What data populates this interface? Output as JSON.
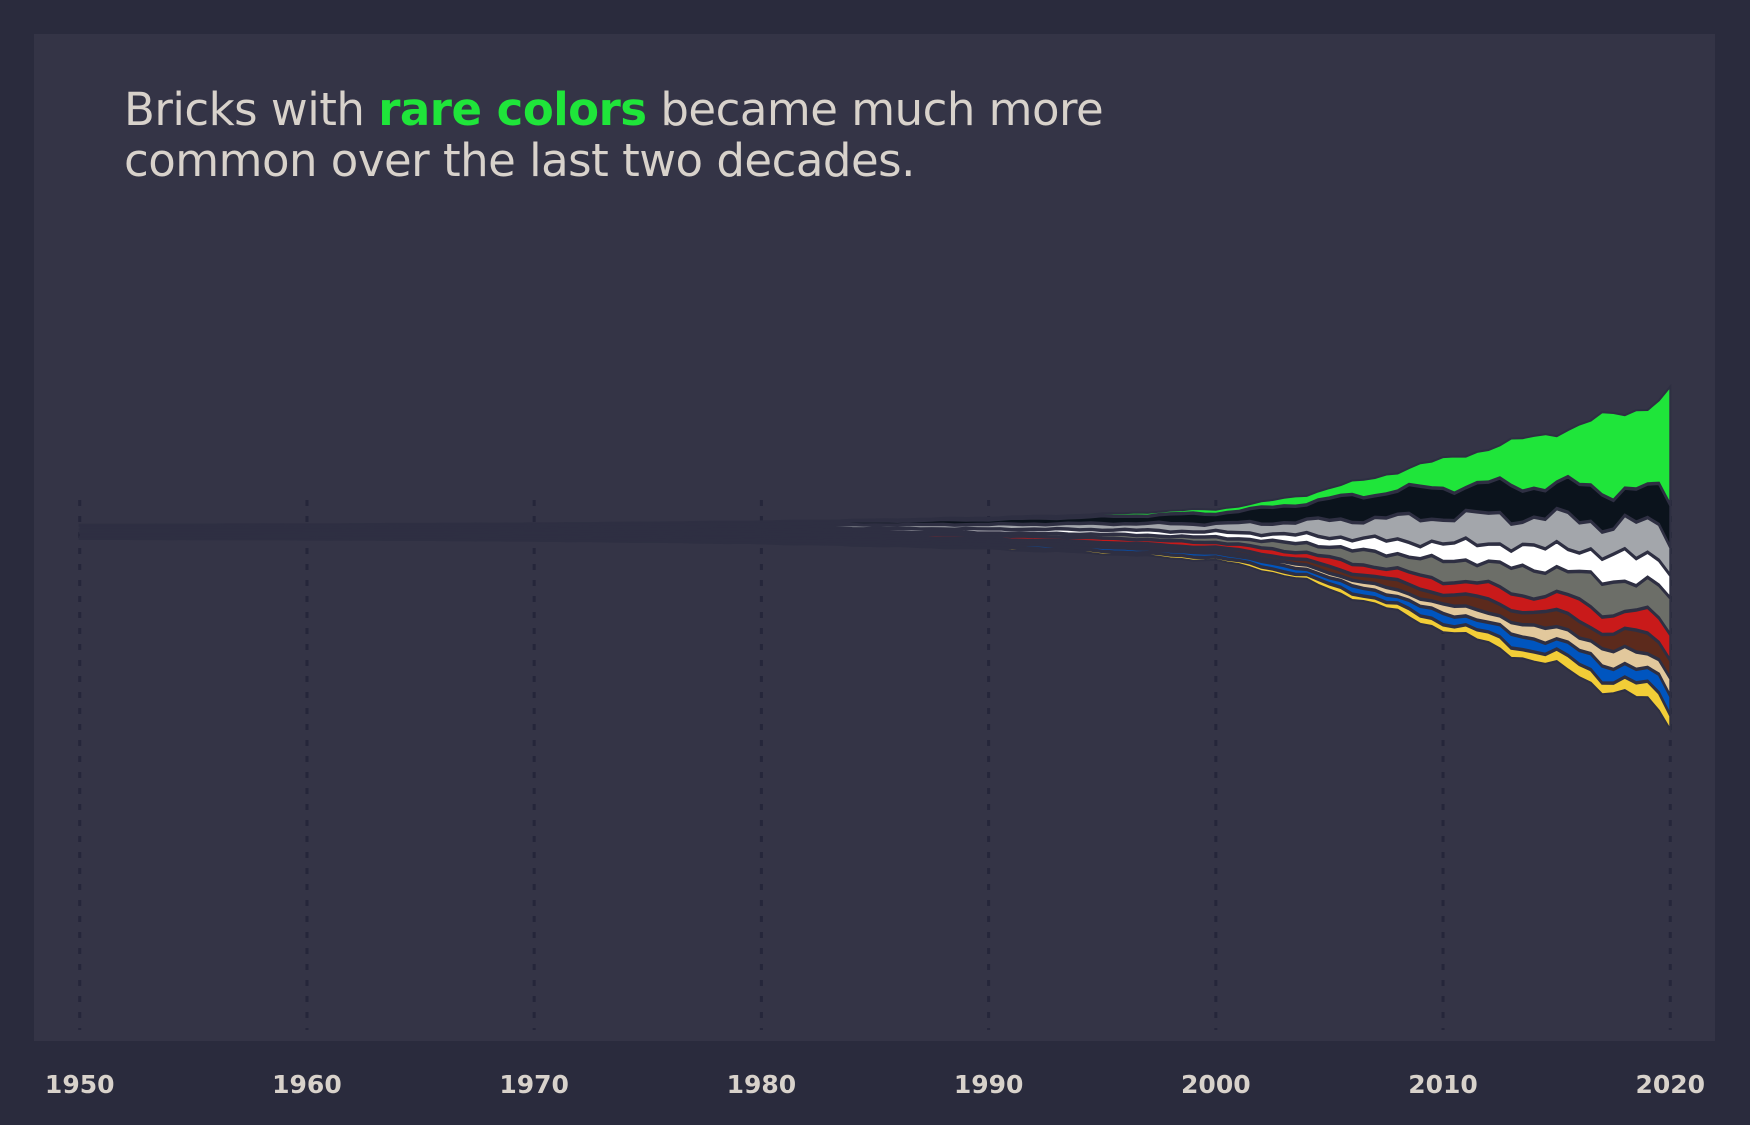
{
  "title": {
    "before": "Bricks with ",
    "highlight": "rare colors",
    "after_line1": " became much more",
    "line2": "common over the last two decades."
  },
  "colors": {
    "background": "#2a2b3d",
    "panel": "#343446",
    "text": "#d8d2cb",
    "highlight": "#1fe53a"
  },
  "chart_data": {
    "type": "area",
    "subtype": "streamgraph",
    "x_ticks": [
      "1950",
      "1960",
      "1970",
      "1980",
      "1990",
      "2000",
      "2010",
      "2020"
    ],
    "xlim": [
      1949,
      2021
    ],
    "grid": "vertical-dashed",
    "series": [
      {
        "color": "#1fe53a",
        "role": "rare colors"
      },
      {
        "color": "#0b131c"
      },
      {
        "color": "#a3a6ab"
      },
      {
        "color": "#ffffff"
      },
      {
        "color": "#6c6e68"
      },
      {
        "color": "#c91a1a"
      },
      {
        "color": "#5c2a1c"
      },
      {
        "color": "#e2c89c"
      },
      {
        "color": "#0055bf"
      },
      {
        "color": "#f2cd37"
      }
    ],
    "years": [
      1950,
      1955,
      1960,
      1965,
      1970,
      1975,
      1980,
      1985,
      1990,
      1995,
      2000,
      2002,
      2004,
      2006,
      2008,
      2010,
      2012,
      2014,
      2016,
      2018,
      2020
    ],
    "values": [
      [
        0.1,
        0.1,
        0.2,
        0.3,
        0.4,
        0.5,
        0.8,
        1.5,
        2.5,
        4,
        8,
        12,
        18,
        28,
        42,
        60,
        80,
        105,
        135,
        170,
        230
      ],
      [
        0.2,
        0.3,
        0.5,
        0.8,
        1.2,
        2,
        3,
        5,
        8,
        12,
        20,
        28,
        38,
        48,
        58,
        62,
        65,
        68,
        70,
        72,
        75
      ],
      [
        0.1,
        0.2,
        0.3,
        0.5,
        1,
        1.8,
        3,
        5,
        7,
        10,
        15,
        20,
        28,
        38,
        48,
        55,
        60,
        62,
        64,
        66,
        68
      ],
      [
        0.4,
        0.6,
        0.8,
        1.2,
        1.6,
        2.2,
        3,
        4,
        5,
        7,
        9,
        12,
        16,
        22,
        28,
        34,
        40,
        45,
        50,
        55,
        60
      ],
      [
        0.1,
        0.1,
        0.2,
        0.3,
        0.5,
        0.8,
        1.2,
        2,
        3,
        5,
        8,
        12,
        18,
        25,
        32,
        40,
        48,
        54,
        60,
        66,
        72
      ],
      [
        0.3,
        0.5,
        0.7,
        1,
        1.4,
        2,
        2.6,
        3.5,
        4.5,
        6,
        8,
        10,
        14,
        18,
        22,
        26,
        30,
        34,
        38,
        42,
        48
      ],
      [
        0.05,
        0.05,
        0.1,
        0.1,
        0.2,
        0.3,
        0.5,
        0.8,
        1.2,
        2,
        3,
        5,
        8,
        12,
        16,
        20,
        24,
        28,
        32,
        36,
        40
      ],
      [
        0.05,
        0.05,
        0.1,
        0.1,
        0.2,
        0.3,
        0.5,
        0.8,
        1.2,
        2,
        3,
        4,
        6,
        9,
        12,
        16,
        20,
        24,
        28,
        32,
        36
      ],
      [
        0.3,
        0.4,
        0.6,
        0.8,
        1.2,
        1.6,
        2.2,
        3,
        4,
        5,
        6,
        8,
        10,
        12,
        15,
        18,
        21,
        24,
        27,
        30,
        34
      ],
      [
        0.2,
        0.3,
        0.5,
        0.7,
        1,
        1.4,
        2,
        2.8,
        3.6,
        4.5,
        5.5,
        7,
        9,
        11,
        13,
        16,
        19,
        22,
        25,
        28,
        32
      ]
    ]
  }
}
